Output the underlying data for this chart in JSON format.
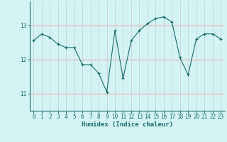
{
  "x": [
    0,
    1,
    2,
    3,
    4,
    5,
    6,
    7,
    8,
    9,
    10,
    11,
    12,
    13,
    14,
    15,
    16,
    17,
    18,
    19,
    20,
    21,
    22,
    23
  ],
  "y": [
    12.55,
    12.75,
    12.65,
    12.45,
    12.35,
    12.35,
    11.85,
    11.85,
    11.6,
    11.05,
    12.85,
    11.45,
    12.55,
    12.85,
    13.05,
    13.2,
    13.25,
    13.1,
    12.05,
    11.55,
    12.6,
    12.75,
    12.75,
    12.6
  ],
  "xlabel": "Humidex (Indice chaleur)",
  "bg_color": "#d4f4f4",
  "line_color": "#1a6b6b",
  "grid_color_h": "#e8a0a0",
  "grid_color_v": "#c8c8d8",
  "yticks": [
    11,
    12,
    13
  ],
  "ylim": [
    10.5,
    13.7
  ],
  "xlim": [
    -0.5,
    23.5
  ],
  "xticklabels": [
    "0",
    "1",
    "2",
    "3",
    "4",
    "5",
    "6",
    "7",
    "8",
    "9",
    "10",
    "11",
    "12",
    "13",
    "14",
    "15",
    "16",
    "17",
    "18",
    "19",
    "20",
    "21",
    "22",
    "23"
  ]
}
